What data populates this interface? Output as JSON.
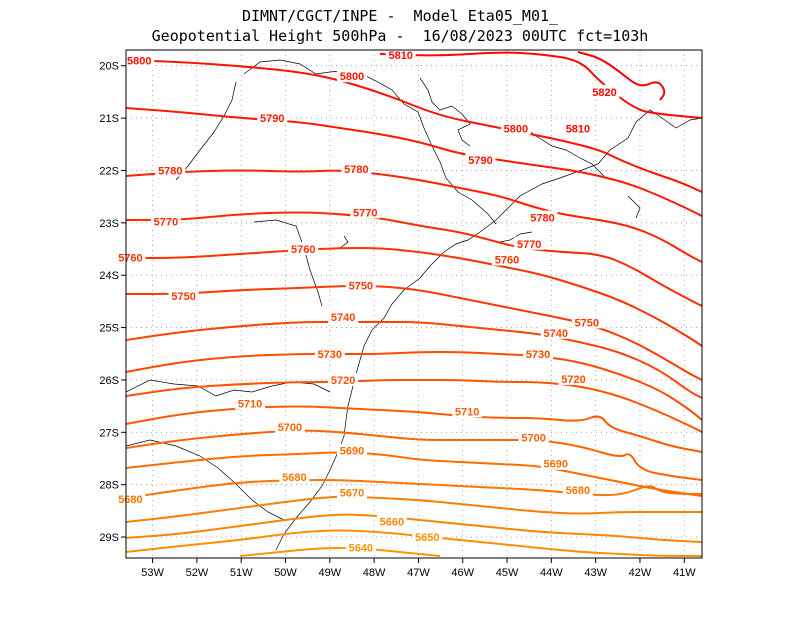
{
  "header": {
    "line1": "DIMNT/CGCT/INPE -  Model Eta05_M01_",
    "line2": "Geopotential Height 500hPa -  16/08/2023 00UTC fct=103h"
  },
  "axes": {
    "lon_labels": [
      "53W",
      "52W",
      "51W",
      "50W",
      "49W",
      "48W",
      "47W",
      "46W",
      "45W",
      "44W",
      "43W",
      "42W",
      "41W"
    ],
    "lat_labels": [
      "20S",
      "21S",
      "22S",
      "23S",
      "24S",
      "25S",
      "26S",
      "27S",
      "28S",
      "29S"
    ],
    "lon_range": [
      -53.6,
      -40.6
    ],
    "lat_range": [
      -29.4,
      -19.7
    ],
    "grid": "dotted"
  },
  "chart_data": {
    "type": "contour",
    "variable": "Geopotential Height 500hPa",
    "levels": [
      5640,
      5650,
      5660,
      5670,
      5680,
      5690,
      5700,
      5710,
      5720,
      5730,
      5740,
      5750,
      5760,
      5770,
      5780,
      5790,
      5800,
      5810,
      5820
    ],
    "labels": [
      {
        "text": "5800",
        "lon": -53.3,
        "lat": -19.9
      },
      {
        "text": "5810",
        "lon": -47.4,
        "lat": -19.8
      },
      {
        "text": "5800",
        "lon": -48.5,
        "lat": -20.2
      },
      {
        "text": "5820",
        "lon": -42.8,
        "lat": -20.5
      },
      {
        "text": "5790",
        "lon": -50.3,
        "lat": -21.0
      },
      {
        "text": "5800",
        "lon": -44.8,
        "lat": -21.2
      },
      {
        "text": "5810",
        "lon": -43.4,
        "lat": -21.2
      },
      {
        "text": "5790",
        "lon": -45.6,
        "lat": -21.8
      },
      {
        "text": "5780",
        "lon": -52.6,
        "lat": -22.0
      },
      {
        "text": "5780",
        "lon": -48.4,
        "lat": -21.97
      },
      {
        "text": "5770",
        "lon": -48.2,
        "lat": -22.8
      },
      {
        "text": "5770",
        "lon": -52.7,
        "lat": -22.97
      },
      {
        "text": "5780",
        "lon": -44.2,
        "lat": -22.9
      },
      {
        "text": "5760",
        "lon": -49.6,
        "lat": -23.5
      },
      {
        "text": "5770",
        "lon": -44.5,
        "lat": -23.4
      },
      {
        "text": "5760",
        "lon": -53.5,
        "lat": -23.66
      },
      {
        "text": "5760",
        "lon": -45.0,
        "lat": -23.7
      },
      {
        "text": "5750",
        "lon": -52.3,
        "lat": -24.4
      },
      {
        "text": "5750",
        "lon": -48.3,
        "lat": -24.2
      },
      {
        "text": "5740",
        "lon": -48.7,
        "lat": -24.8
      },
      {
        "text": "5740",
        "lon": -43.9,
        "lat": -25.1
      },
      {
        "text": "5750",
        "lon": -43.2,
        "lat": -24.9
      },
      {
        "text": "5730",
        "lon": -49.0,
        "lat": -25.5
      },
      {
        "text": "5730",
        "lon": -44.3,
        "lat": -25.5
      },
      {
        "text": "5720",
        "lon": -48.7,
        "lat": -26.0
      },
      {
        "text": "5720",
        "lon": -43.5,
        "lat": -25.98
      },
      {
        "text": "5710",
        "lon": -50.8,
        "lat": -26.45
      },
      {
        "text": "5710",
        "lon": -45.9,
        "lat": -26.6
      },
      {
        "text": "5700",
        "lon": -49.9,
        "lat": -26.9
      },
      {
        "text": "5700",
        "lon": -44.4,
        "lat": -27.1
      },
      {
        "text": "5690",
        "lon": -48.5,
        "lat": -27.35
      },
      {
        "text": "5690",
        "lon": -43.9,
        "lat": -27.6
      },
      {
        "text": "5680",
        "lon": -49.8,
        "lat": -27.85
      },
      {
        "text": "5680",
        "lon": -43.4,
        "lat": -28.1
      },
      {
        "text": "5680",
        "lon": -53.5,
        "lat": -28.27
      },
      {
        "text": "5670",
        "lon": -48.5,
        "lat": -28.15
      },
      {
        "text": "5660",
        "lon": -47.6,
        "lat": -28.7
      },
      {
        "text": "5650",
        "lon": -46.8,
        "lat": -29.0
      },
      {
        "text": "5640",
        "lon": -48.3,
        "lat": -29.2
      }
    ]
  }
}
